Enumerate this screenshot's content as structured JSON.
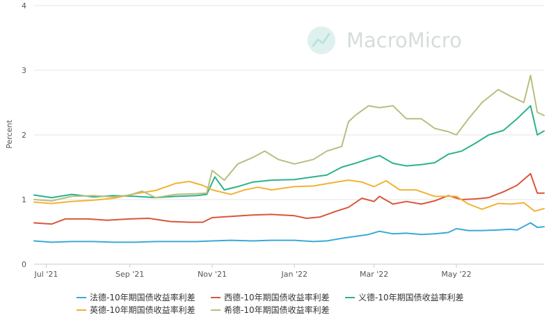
{
  "chart_data": {
    "type": "line",
    "title": "",
    "xlabel": "",
    "ylabel": "Percent",
    "ylim": [
      0,
      4
    ],
    "y_ticks": [
      "0",
      "1",
      "2",
      "3",
      "4"
    ],
    "x_range": [
      "2021-06-22",
      "2022-07-05"
    ],
    "x_ticks": [
      {
        "label": "Jul '21",
        "date": "2021-07-01"
      },
      {
        "label": "Sep '21",
        "date": "2021-09-01"
      },
      {
        "label": "Nov '21",
        "date": "2021-11-01"
      },
      {
        "label": "Jan '22",
        "date": "2022-01-01"
      },
      {
        "label": "Mar '22",
        "date": "2022-03-01"
      },
      {
        "label": "May '22",
        "date": "2022-05-01"
      }
    ],
    "grid": true,
    "legend_position": "bottom",
    "watermark": "MacroMicro",
    "series": [
      {
        "name": "法德-10年期国债收益率利差",
        "color": "#3aa9d8",
        "points": [
          [
            "2021-06-22",
            0.36
          ],
          [
            "2021-07-05",
            0.34
          ],
          [
            "2021-07-20",
            0.35
          ],
          [
            "2021-08-05",
            0.35
          ],
          [
            "2021-08-20",
            0.34
          ],
          [
            "2021-09-05",
            0.34
          ],
          [
            "2021-09-20",
            0.35
          ],
          [
            "2021-10-05",
            0.35
          ],
          [
            "2021-10-20",
            0.35
          ],
          [
            "2021-11-01",
            0.36
          ],
          [
            "2021-11-15",
            0.37
          ],
          [
            "2021-12-01",
            0.36
          ],
          [
            "2021-12-15",
            0.37
          ],
          [
            "2022-01-01",
            0.37
          ],
          [
            "2022-01-15",
            0.35
          ],
          [
            "2022-01-25",
            0.36
          ],
          [
            "2022-02-05",
            0.4
          ],
          [
            "2022-02-15",
            0.43
          ],
          [
            "2022-02-25",
            0.46
          ],
          [
            "2022-03-05",
            0.51
          ],
          [
            "2022-03-15",
            0.47
          ],
          [
            "2022-03-25",
            0.48
          ],
          [
            "2022-04-05",
            0.46
          ],
          [
            "2022-04-15",
            0.47
          ],
          [
            "2022-04-25",
            0.49
          ],
          [
            "2022-05-01",
            0.55
          ],
          [
            "2022-05-10",
            0.52
          ],
          [
            "2022-05-20",
            0.52
          ],
          [
            "2022-06-01",
            0.53
          ],
          [
            "2022-06-10",
            0.54
          ],
          [
            "2022-06-15",
            0.53
          ],
          [
            "2022-06-25",
            0.64
          ],
          [
            "2022-06-30",
            0.57
          ],
          [
            "2022-07-05",
            0.58
          ]
        ]
      },
      {
        "name": "西德-10年期国债收益率利差",
        "color": "#d9553a",
        "points": [
          [
            "2021-06-22",
            0.64
          ],
          [
            "2021-07-05",
            0.62
          ],
          [
            "2021-07-15",
            0.7
          ],
          [
            "2021-08-01",
            0.7
          ],
          [
            "2021-08-15",
            0.68
          ],
          [
            "2021-09-01",
            0.7
          ],
          [
            "2021-09-15",
            0.71
          ],
          [
            "2021-10-01",
            0.66
          ],
          [
            "2021-10-15",
            0.65
          ],
          [
            "2021-10-25",
            0.65
          ],
          [
            "2021-11-01",
            0.72
          ],
          [
            "2021-11-15",
            0.74
          ],
          [
            "2021-12-01",
            0.76
          ],
          [
            "2021-12-15",
            0.77
          ],
          [
            "2022-01-01",
            0.75
          ],
          [
            "2022-01-10",
            0.71
          ],
          [
            "2022-01-20",
            0.73
          ],
          [
            "2022-02-01",
            0.82
          ],
          [
            "2022-02-10",
            0.88
          ],
          [
            "2022-02-20",
            1.02
          ],
          [
            "2022-03-01",
            0.97
          ],
          [
            "2022-03-05",
            1.05
          ],
          [
            "2022-03-15",
            0.93
          ],
          [
            "2022-03-25",
            0.97
          ],
          [
            "2022-04-05",
            0.93
          ],
          [
            "2022-04-15",
            0.98
          ],
          [
            "2022-04-25",
            1.06
          ],
          [
            "2022-05-05",
            1.0
          ],
          [
            "2022-05-15",
            1.01
          ],
          [
            "2022-05-25",
            1.03
          ],
          [
            "2022-06-05",
            1.12
          ],
          [
            "2022-06-15",
            1.22
          ],
          [
            "2022-06-25",
            1.4
          ],
          [
            "2022-06-30",
            1.1
          ],
          [
            "2022-07-05",
            1.1
          ]
        ]
      },
      {
        "name": "义德-10年期国债收益率利差",
        "color": "#2bb28e",
        "points": [
          [
            "2021-06-22",
            1.07
          ],
          [
            "2021-07-05",
            1.03
          ],
          [
            "2021-07-20",
            1.08
          ],
          [
            "2021-08-05",
            1.04
          ],
          [
            "2021-08-20",
            1.06
          ],
          [
            "2021-09-05",
            1.05
          ],
          [
            "2021-09-20",
            1.03
          ],
          [
            "2021-10-05",
            1.05
          ],
          [
            "2021-10-20",
            1.06
          ],
          [
            "2021-10-28",
            1.08
          ],
          [
            "2021-11-03",
            1.35
          ],
          [
            "2021-11-10",
            1.15
          ],
          [
            "2021-11-20",
            1.2
          ],
          [
            "2021-12-01",
            1.27
          ],
          [
            "2021-12-15",
            1.3
          ],
          [
            "2022-01-01",
            1.31
          ],
          [
            "2022-01-15",
            1.35
          ],
          [
            "2022-01-25",
            1.38
          ],
          [
            "2022-02-05",
            1.5
          ],
          [
            "2022-02-15",
            1.56
          ],
          [
            "2022-02-25",
            1.63
          ],
          [
            "2022-03-05",
            1.68
          ],
          [
            "2022-03-15",
            1.56
          ],
          [
            "2022-03-25",
            1.52
          ],
          [
            "2022-04-05",
            1.54
          ],
          [
            "2022-04-15",
            1.57
          ],
          [
            "2022-04-25",
            1.7
          ],
          [
            "2022-05-05",
            1.75
          ],
          [
            "2022-05-15",
            1.87
          ],
          [
            "2022-05-25",
            2.0
          ],
          [
            "2022-06-05",
            2.07
          ],
          [
            "2022-06-15",
            2.25
          ],
          [
            "2022-06-25",
            2.45
          ],
          [
            "2022-06-30",
            2.0
          ],
          [
            "2022-07-05",
            2.06
          ]
        ]
      },
      {
        "name": "英德-10年期国债收益率利差",
        "color": "#f2b233",
        "points": [
          [
            "2021-06-22",
            0.96
          ],
          [
            "2021-07-05",
            0.94
          ],
          [
            "2021-07-20",
            0.97
          ],
          [
            "2021-08-05",
            0.99
          ],
          [
            "2021-08-20",
            1.02
          ],
          [
            "2021-09-05",
            1.09
          ],
          [
            "2021-09-20",
            1.14
          ],
          [
            "2021-10-05",
            1.25
          ],
          [
            "2021-10-15",
            1.28
          ],
          [
            "2021-10-25",
            1.22
          ],
          [
            "2021-11-01",
            1.15
          ],
          [
            "2021-11-15",
            1.08
          ],
          [
            "2021-11-25",
            1.15
          ],
          [
            "2021-12-05",
            1.19
          ],
          [
            "2021-12-15",
            1.15
          ],
          [
            "2022-01-01",
            1.2
          ],
          [
            "2022-01-15",
            1.21
          ],
          [
            "2022-02-01",
            1.27
          ],
          [
            "2022-02-10",
            1.3
          ],
          [
            "2022-02-20",
            1.27
          ],
          [
            "2022-03-01",
            1.2
          ],
          [
            "2022-03-10",
            1.29
          ],
          [
            "2022-03-20",
            1.15
          ],
          [
            "2022-04-01",
            1.15
          ],
          [
            "2022-04-15",
            1.05
          ],
          [
            "2022-05-01",
            1.05
          ],
          [
            "2022-05-10",
            0.93
          ],
          [
            "2022-05-20",
            0.85
          ],
          [
            "2022-06-01",
            0.94
          ],
          [
            "2022-06-10",
            0.93
          ],
          [
            "2022-06-20",
            0.95
          ],
          [
            "2022-06-28",
            0.82
          ],
          [
            "2022-07-05",
            0.86
          ]
        ]
      },
      {
        "name": "希德-10年期国债收益率利差",
        "color": "#b9bd7e",
        "points": [
          [
            "2021-06-22",
            1.0
          ],
          [
            "2021-07-05",
            0.98
          ],
          [
            "2021-07-20",
            1.05
          ],
          [
            "2021-08-05",
            1.06
          ],
          [
            "2021-08-20",
            1.04
          ],
          [
            "2021-09-01",
            1.07
          ],
          [
            "2021-09-10",
            1.13
          ],
          [
            "2021-09-20",
            1.03
          ],
          [
            "2021-10-05",
            1.08
          ],
          [
            "2021-10-20",
            1.09
          ],
          [
            "2021-10-28",
            1.1
          ],
          [
            "2021-11-01",
            1.45
          ],
          [
            "2021-11-10",
            1.3
          ],
          [
            "2021-11-20",
            1.55
          ],
          [
            "2021-12-01",
            1.65
          ],
          [
            "2021-12-10",
            1.75
          ],
          [
            "2021-12-20",
            1.62
          ],
          [
            "2022-01-01",
            1.55
          ],
          [
            "2022-01-15",
            1.62
          ],
          [
            "2022-01-25",
            1.75
          ],
          [
            "2022-02-05",
            1.82
          ],
          [
            "2022-02-10",
            2.2
          ],
          [
            "2022-02-15",
            2.3
          ],
          [
            "2022-02-25",
            2.45
          ],
          [
            "2022-03-05",
            2.42
          ],
          [
            "2022-03-15",
            2.45
          ],
          [
            "2022-03-25",
            2.25
          ],
          [
            "2022-04-05",
            2.25
          ],
          [
            "2022-04-15",
            2.1
          ],
          [
            "2022-04-25",
            2.05
          ],
          [
            "2022-05-01",
            2.0
          ],
          [
            "2022-05-10",
            2.25
          ],
          [
            "2022-05-20",
            2.5
          ],
          [
            "2022-06-01",
            2.7
          ],
          [
            "2022-06-10",
            2.6
          ],
          [
            "2022-06-20",
            2.5
          ],
          [
            "2022-06-25",
            2.92
          ],
          [
            "2022-06-30",
            2.35
          ],
          [
            "2022-07-05",
            2.3
          ]
        ]
      }
    ]
  }
}
